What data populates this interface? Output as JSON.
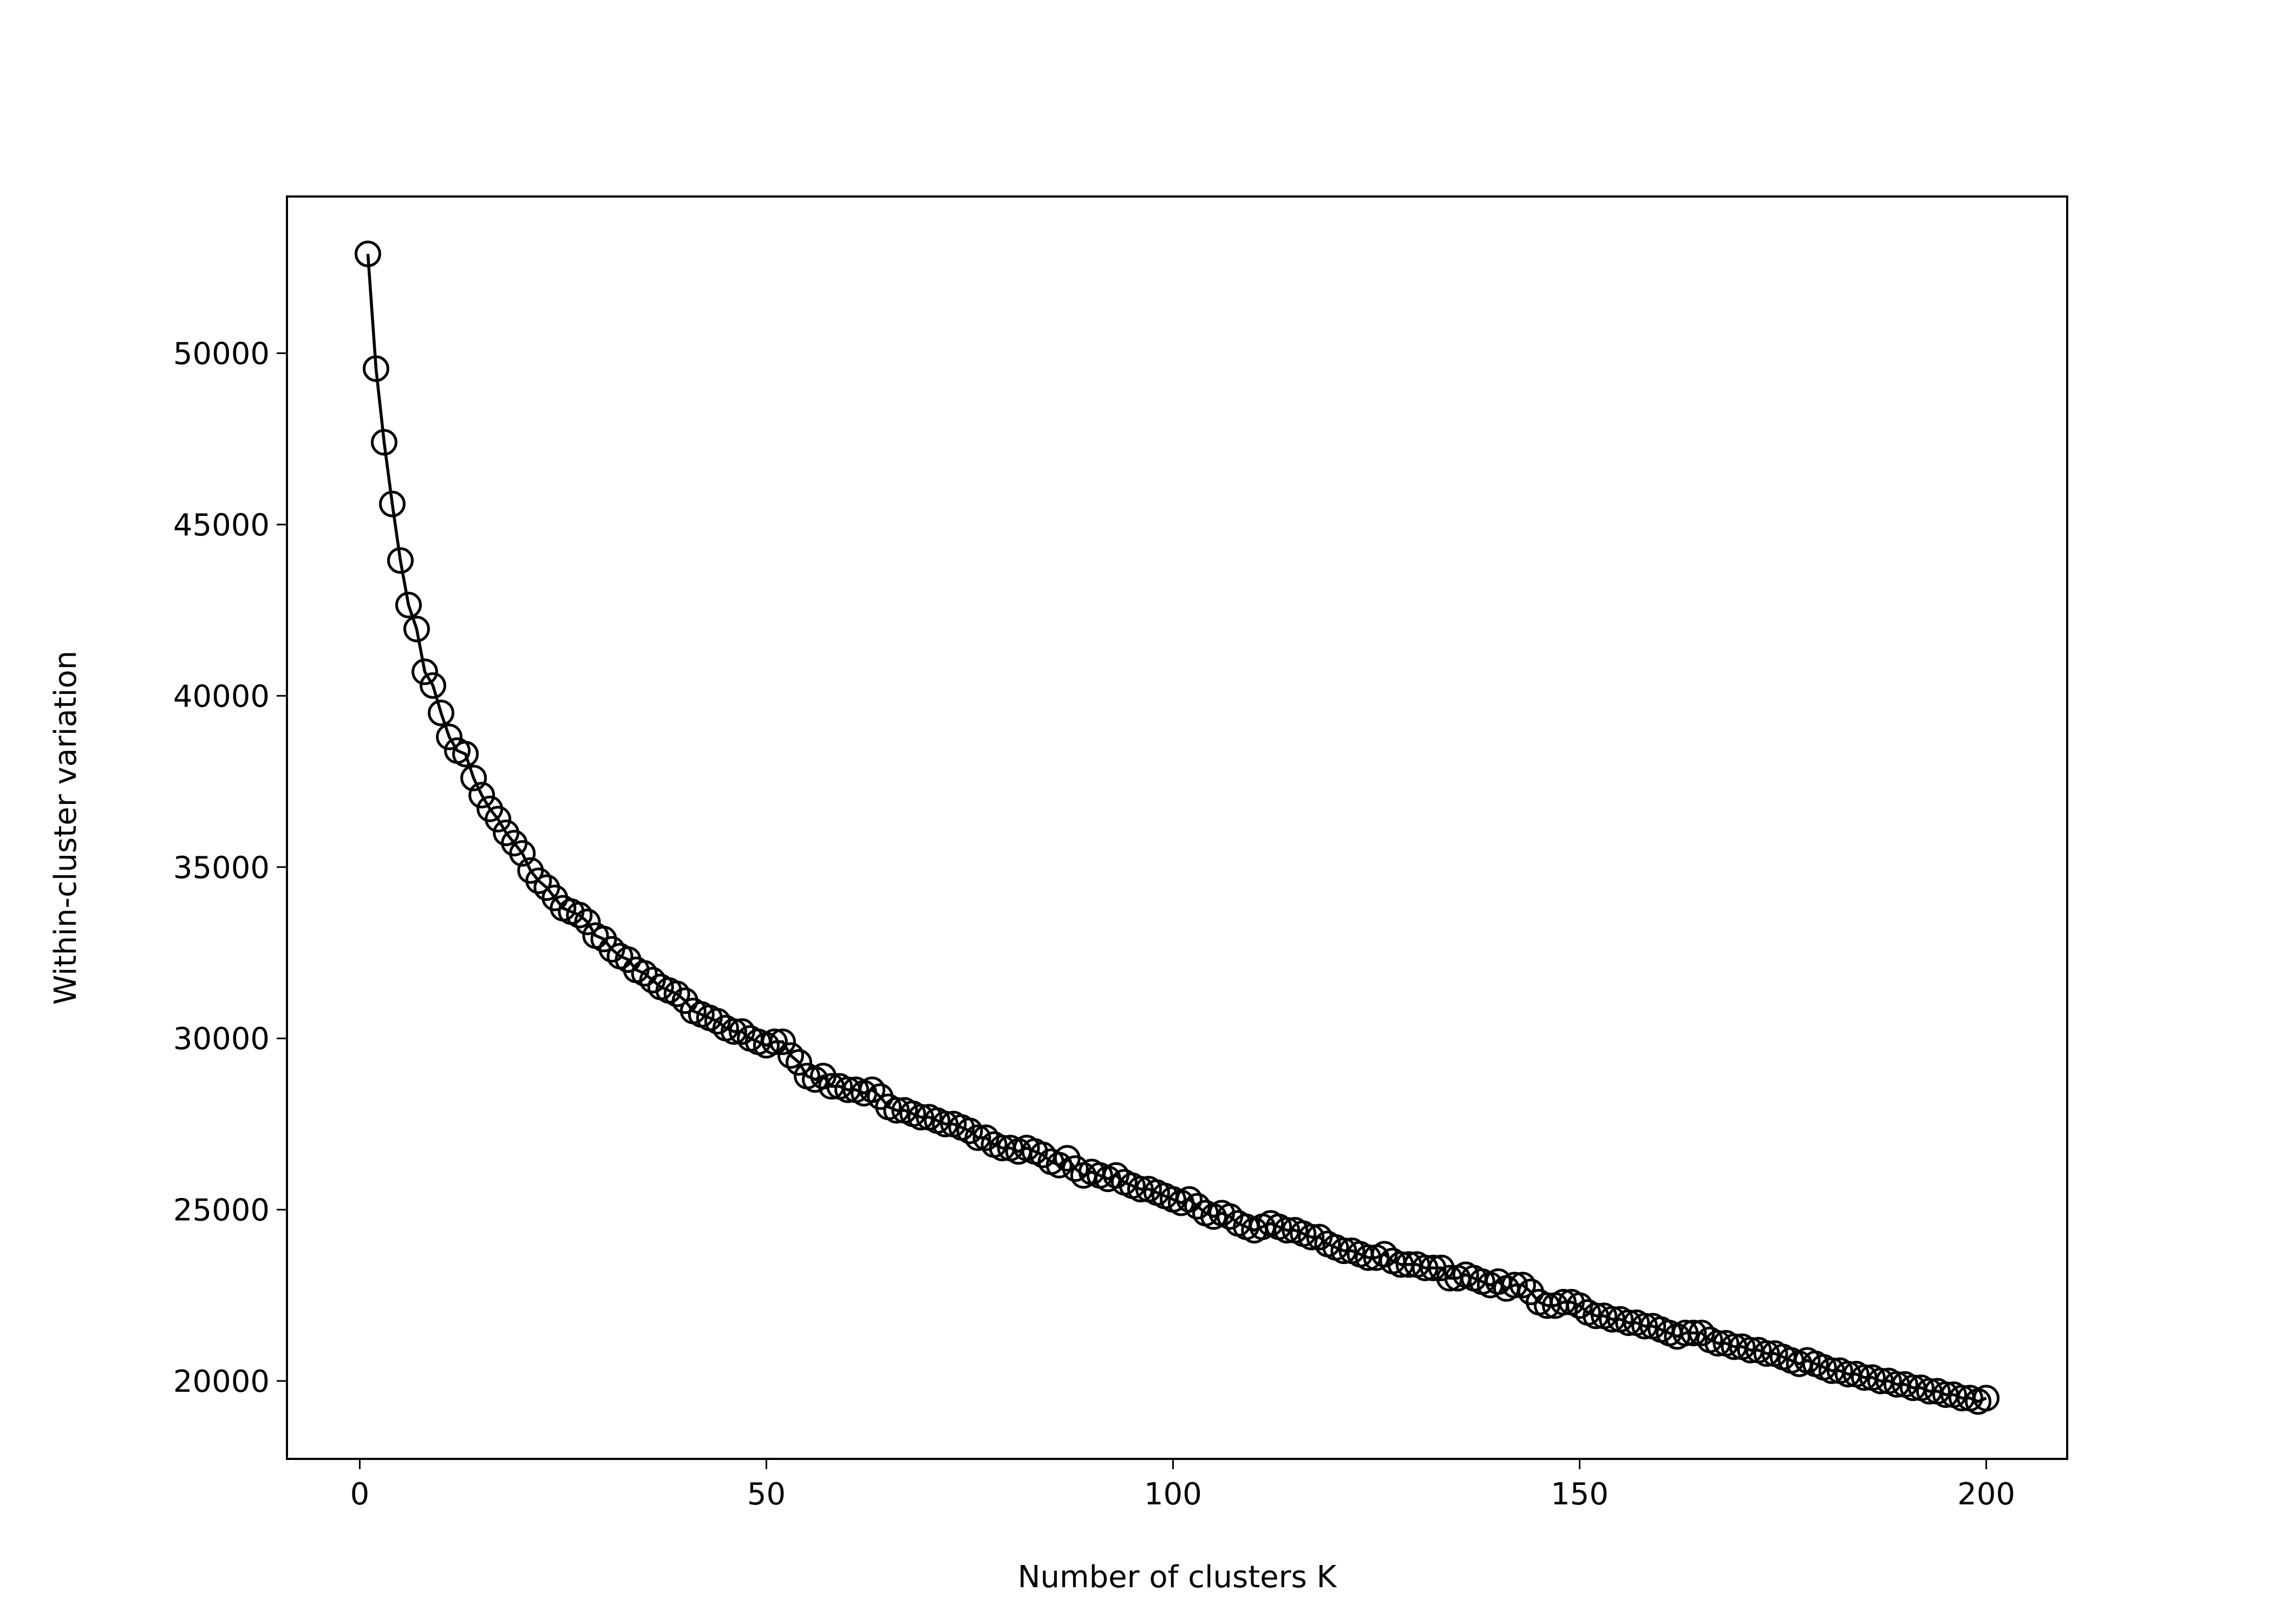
{
  "chart_data": {
    "type": "line",
    "xlabel": "Number of clusters K",
    "ylabel": "Within-cluster variation",
    "x": [
      1,
      2,
      3,
      4,
      5,
      6,
      7,
      8,
      9,
      10,
      11,
      12,
      13,
      14,
      15,
      16,
      17,
      18,
      19,
      20,
      21,
      22,
      23,
      24,
      25,
      26,
      27,
      28,
      29,
      30,
      31,
      32,
      33,
      34,
      35,
      36,
      37,
      38,
      39,
      40,
      41,
      42,
      43,
      44,
      45,
      46,
      47,
      48,
      49,
      50,
      51,
      52,
      53,
      54,
      55,
      56,
      57,
      58,
      59,
      60,
      61,
      62,
      63,
      64,
      65,
      66,
      67,
      68,
      69,
      70,
      71,
      72,
      73,
      74,
      75,
      76,
      77,
      78,
      79,
      80,
      81,
      82,
      83,
      84,
      85,
      86,
      87,
      88,
      89,
      90,
      91,
      92,
      93,
      94,
      95,
      96,
      97,
      98,
      99,
      100,
      101,
      102,
      103,
      104,
      105,
      106,
      107,
      108,
      109,
      110,
      111,
      112,
      113,
      114,
      115,
      116,
      117,
      118,
      119,
      120,
      121,
      122,
      123,
      124,
      125,
      126,
      127,
      128,
      129,
      130,
      131,
      132,
      133,
      134,
      135,
      136,
      137,
      138,
      139,
      140,
      141,
      142,
      143,
      144,
      145,
      146,
      147,
      148,
      149,
      150,
      151,
      152,
      153,
      154,
      155,
      156,
      157,
      158,
      159,
      160,
      161,
      162,
      163,
      164,
      165,
      166,
      167,
      168,
      169,
      170,
      171,
      172,
      173,
      174,
      175,
      176,
      177,
      178,
      179,
      180,
      181,
      182,
      183,
      184,
      185,
      186,
      187,
      188,
      189,
      190,
      191,
      192,
      193,
      194,
      195,
      196,
      197,
      198,
      199,
      200
    ],
    "series": [
      {
        "color": "#000000",
        "values": [
          52900,
          49550,
          47400,
          45600,
          43950,
          42650,
          41950,
          40700,
          40300,
          39500,
          38800,
          38400,
          38300,
          37600,
          37100,
          36700,
          36400,
          36000,
          35700,
          35400,
          34900,
          34600,
          34400,
          34100,
          33800,
          33700,
          33600,
          33400,
          33000,
          32900,
          32600,
          32400,
          32300,
          32000,
          31900,
          31700,
          31500,
          31400,
          31300,
          31100,
          30800,
          30700,
          30600,
          30500,
          30300,
          30200,
          30200,
          30000,
          29900,
          29800,
          29900,
          29900,
          29500,
          29300,
          28900,
          28800,
          28900,
          28600,
          28600,
          28500,
          28500,
          28400,
          28500,
          28300,
          28000,
          27900,
          27900,
          27800,
          27700,
          27700,
          27600,
          27500,
          27500,
          27400,
          27300,
          27100,
          27100,
          26900,
          26800,
          26800,
          26700,
          26800,
          26700,
          26600,
          26400,
          26300,
          26500,
          26200,
          26000,
          26100,
          26000,
          25900,
          26000,
          25800,
          25700,
          25600,
          25600,
          25500,
          25400,
          25300,
          25200,
          25300,
          25100,
          24900,
          24800,
          24900,
          24800,
          24600,
          24500,
          24400,
          24500,
          24600,
          24500,
          24400,
          24400,
          24300,
          24200,
          24200,
          24000,
          23900,
          23800,
          23800,
          23700,
          23600,
          23600,
          23700,
          23500,
          23400,
          23400,
          23400,
          23300,
          23300,
          23300,
          23000,
          23000,
          23100,
          23000,
          22900,
          22800,
          22900,
          22700,
          22800,
          22800,
          22600,
          22300,
          22200,
          22200,
          22300,
          22300,
          22200,
          22000,
          21900,
          21900,
          21800,
          21800,
          21700,
          21700,
          21600,
          21600,
          21500,
          21400,
          21300,
          21400,
          21400,
          21400,
          21200,
          21100,
          21100,
          21000,
          21000,
          20900,
          20900,
          20800,
          20800,
          20700,
          20600,
          20500,
          20600,
          20500,
          20400,
          20300,
          20300,
          20200,
          20200,
          20100,
          20100,
          20000,
          20000,
          19900,
          19900,
          19800,
          19800,
          19700,
          19700,
          19600,
          19600,
          19500,
          19500,
          19400,
          19500
        ]
      }
    ],
    "xlim": [
      -8.95,
      209.95
    ],
    "xticks": [
      0,
      50,
      100,
      150,
      200
    ],
    "ylim": [
      17725,
      54575
    ],
    "yticks": [
      20000,
      25000,
      30000,
      35000,
      40000,
      45000,
      50000
    ],
    "markers": "open-circle",
    "grid": false
  }
}
